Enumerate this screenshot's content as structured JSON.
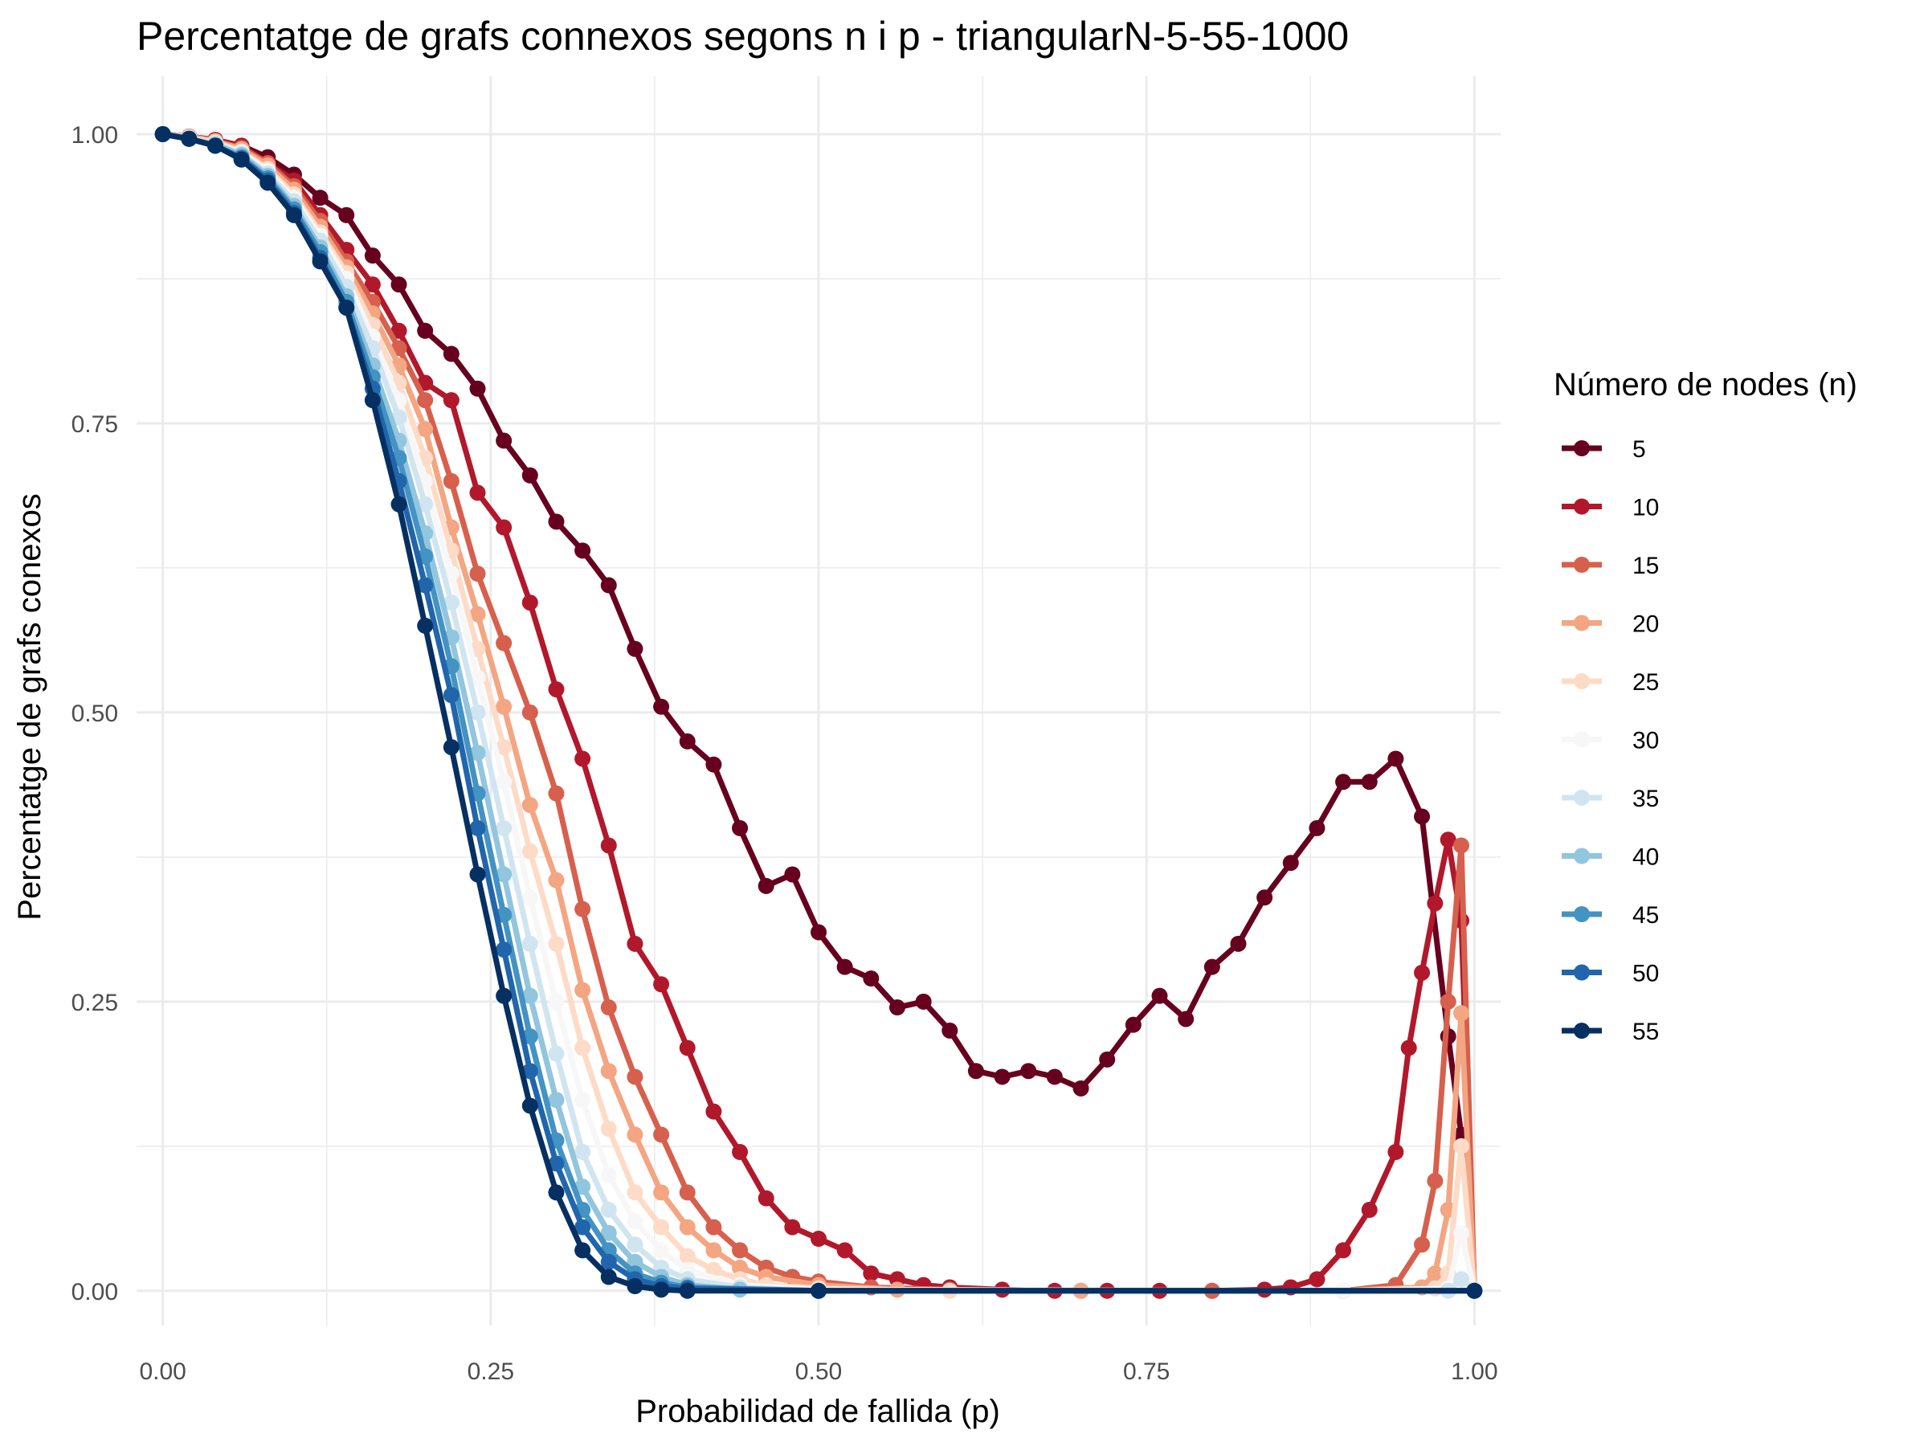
{
  "chart_data": {
    "type": "line",
    "title": "Percentatge de grafs connexos segons n i p - triangularN-5-55-1000",
    "xlabel": "Probabilidad de fallida (p)",
    "ylabel": "Percentatge de grafs conexos",
    "xlim": [
      -0.02,
      1.02
    ],
    "ylim": [
      -0.03,
      1.05
    ],
    "xticks": [
      0,
      0.25,
      0.5,
      0.75,
      1
    ],
    "xtick_labels": [
      "0.00",
      "0.25",
      "0.50",
      "0.75",
      "1.00"
    ],
    "yticks": [
      0,
      0.25,
      0.5,
      0.75,
      1
    ],
    "ytick_labels": [
      "0.00",
      "0.25",
      "0.50",
      "0.75",
      "1.00"
    ],
    "grid": true,
    "legend_title": "Número de nodes (n)",
    "legend_position": "right",
    "series": [
      {
        "name": "5",
        "color": "#67001f",
        "x": [
          0,
          0.02,
          0.04,
          0.06,
          0.08,
          0.1,
          0.12,
          0.14,
          0.16,
          0.18,
          0.2,
          0.22,
          0.24,
          0.26,
          0.28,
          0.3,
          0.32,
          0.34,
          0.36,
          0.38,
          0.4,
          0.42,
          0.44,
          0.46,
          0.48,
          0.5,
          0.52,
          0.54,
          0.56,
          0.58,
          0.6,
          0.62,
          0.64,
          0.66,
          0.68,
          0.7,
          0.72,
          0.74,
          0.76,
          0.78,
          0.8,
          0.82,
          0.84,
          0.86,
          0.88,
          0.9,
          0.92,
          0.94,
          0.96,
          0.98,
          0.99,
          1.0
        ],
        "y": [
          1.0,
          0.998,
          0.995,
          0.99,
          0.98,
          0.965,
          0.945,
          0.93,
          0.895,
          0.87,
          0.83,
          0.81,
          0.78,
          0.735,
          0.705,
          0.665,
          0.64,
          0.61,
          0.555,
          0.505,
          0.475,
          0.455,
          0.4,
          0.35,
          0.36,
          0.31,
          0.28,
          0.27,
          0.245,
          0.25,
          0.225,
          0.19,
          0.185,
          0.19,
          0.185,
          0.175,
          0.2,
          0.23,
          0.255,
          0.235,
          0.28,
          0.3,
          0.34,
          0.37,
          0.4,
          0.44,
          0.44,
          0.46,
          0.41,
          0.22,
          0.135,
          0.0
        ]
      },
      {
        "name": "10",
        "color": "#b2182b",
        "x": [
          0,
          0.02,
          0.04,
          0.06,
          0.08,
          0.1,
          0.12,
          0.14,
          0.16,
          0.18,
          0.2,
          0.22,
          0.24,
          0.26,
          0.28,
          0.3,
          0.32,
          0.34,
          0.36,
          0.38,
          0.4,
          0.42,
          0.44,
          0.46,
          0.48,
          0.5,
          0.52,
          0.54,
          0.56,
          0.58,
          0.6,
          0.64,
          0.68,
          0.72,
          0.76,
          0.8,
          0.84,
          0.86,
          0.88,
          0.9,
          0.92,
          0.94,
          0.95,
          0.96,
          0.97,
          0.98,
          0.99,
          1.0
        ],
        "y": [
          1.0,
          0.998,
          0.995,
          0.99,
          0.975,
          0.96,
          0.93,
          0.9,
          0.87,
          0.83,
          0.785,
          0.77,
          0.69,
          0.66,
          0.595,
          0.52,
          0.46,
          0.385,
          0.3,
          0.265,
          0.21,
          0.155,
          0.12,
          0.08,
          0.055,
          0.045,
          0.035,
          0.015,
          0.01,
          0.005,
          0.003,
          0.001,
          0,
          0,
          0,
          0,
          0.001,
          0.003,
          0.01,
          0.035,
          0.07,
          0.12,
          0.21,
          0.275,
          0.335,
          0.39,
          0.32,
          0.0
        ]
      },
      {
        "name": "15",
        "color": "#d6604d",
        "x": [
          0,
          0.02,
          0.04,
          0.06,
          0.08,
          0.1,
          0.12,
          0.14,
          0.16,
          0.18,
          0.2,
          0.22,
          0.24,
          0.26,
          0.28,
          0.3,
          0.32,
          0.34,
          0.36,
          0.38,
          0.4,
          0.42,
          0.44,
          0.46,
          0.48,
          0.5,
          0.54,
          0.6,
          0.7,
          0.8,
          0.9,
          0.94,
          0.96,
          0.97,
          0.98,
          0.99,
          1.0
        ],
        "y": [
          1.0,
          0.998,
          0.994,
          0.988,
          0.975,
          0.955,
          0.925,
          0.89,
          0.855,
          0.815,
          0.77,
          0.7,
          0.62,
          0.56,
          0.5,
          0.43,
          0.33,
          0.245,
          0.185,
          0.135,
          0.085,
          0.055,
          0.035,
          0.02,
          0.012,
          0.008,
          0.003,
          0.001,
          0,
          0,
          0,
          0.005,
          0.04,
          0.095,
          0.25,
          0.385,
          0.0
        ]
      },
      {
        "name": "20",
        "color": "#f4a582",
        "x": [
          0,
          0.02,
          0.04,
          0.06,
          0.08,
          0.1,
          0.12,
          0.14,
          0.16,
          0.18,
          0.2,
          0.22,
          0.24,
          0.26,
          0.28,
          0.3,
          0.32,
          0.34,
          0.36,
          0.38,
          0.4,
          0.42,
          0.44,
          0.46,
          0.5,
          0.56,
          0.7,
          0.9,
          0.96,
          0.97,
          0.98,
          0.99,
          1.0
        ],
        "y": [
          1.0,
          0.998,
          0.994,
          0.987,
          0.973,
          0.952,
          0.92,
          0.885,
          0.845,
          0.8,
          0.745,
          0.66,
          0.585,
          0.505,
          0.42,
          0.355,
          0.26,
          0.19,
          0.135,
          0.085,
          0.055,
          0.035,
          0.02,
          0.012,
          0.005,
          0.001,
          0,
          0,
          0.003,
          0.015,
          0.07,
          0.24,
          0.0
        ]
      },
      {
        "name": "25",
        "color": "#fddbc7",
        "x": [
          0,
          0.02,
          0.04,
          0.06,
          0.08,
          0.1,
          0.12,
          0.14,
          0.16,
          0.18,
          0.2,
          0.22,
          0.24,
          0.26,
          0.28,
          0.3,
          0.32,
          0.34,
          0.36,
          0.38,
          0.4,
          0.42,
          0.44,
          0.46,
          0.5,
          0.6,
          0.9,
          0.97,
          0.98,
          0.99,
          1.0
        ],
        "y": [
          1.0,
          0.997,
          0.993,
          0.985,
          0.97,
          0.948,
          0.915,
          0.88,
          0.835,
          0.785,
          0.72,
          0.64,
          0.555,
          0.47,
          0.38,
          0.3,
          0.21,
          0.14,
          0.085,
          0.055,
          0.03,
          0.018,
          0.01,
          0.005,
          0.002,
          0,
          0,
          0.002,
          0.015,
          0.125,
          0.0
        ]
      },
      {
        "name": "30",
        "color": "#f7f7f7",
        "x": [
          0,
          0.02,
          0.04,
          0.06,
          0.08,
          0.1,
          0.12,
          0.14,
          0.16,
          0.18,
          0.2,
          0.22,
          0.24,
          0.26,
          0.28,
          0.3,
          0.32,
          0.34,
          0.36,
          0.38,
          0.4,
          0.44,
          0.5,
          0.9,
          0.98,
          0.99,
          1.0
        ],
        "y": [
          1.0,
          0.997,
          0.992,
          0.984,
          0.968,
          0.945,
          0.912,
          0.875,
          0.825,
          0.77,
          0.7,
          0.62,
          0.53,
          0.44,
          0.34,
          0.25,
          0.165,
          0.1,
          0.06,
          0.035,
          0.018,
          0.005,
          0.001,
          0,
          0.002,
          0.05,
          0.0
        ]
      },
      {
        "name": "35",
        "color": "#d1e5f0",
        "x": [
          0,
          0.02,
          0.04,
          0.06,
          0.08,
          0.1,
          0.12,
          0.14,
          0.16,
          0.18,
          0.2,
          0.22,
          0.24,
          0.26,
          0.28,
          0.3,
          0.32,
          0.34,
          0.36,
          0.38,
          0.4,
          0.44,
          0.5,
          0.98,
          0.99,
          1.0
        ],
        "y": [
          1.0,
          0.997,
          0.992,
          0.983,
          0.966,
          0.942,
          0.908,
          0.868,
          0.815,
          0.755,
          0.68,
          0.595,
          0.5,
          0.4,
          0.3,
          0.205,
          0.12,
          0.07,
          0.04,
          0.02,
          0.01,
          0.003,
          0,
          0,
          0.01,
          0.0
        ]
      },
      {
        "name": "40",
        "color": "#92c5de",
        "x": [
          0,
          0.02,
          0.04,
          0.06,
          0.08,
          0.1,
          0.12,
          0.14,
          0.16,
          0.18,
          0.2,
          0.22,
          0.24,
          0.26,
          0.28,
          0.3,
          0.32,
          0.34,
          0.36,
          0.38,
          0.4,
          0.44,
          0.5,
          1.0
        ],
        "y": [
          1.0,
          0.996,
          0.991,
          0.982,
          0.964,
          0.938,
          0.902,
          0.86,
          0.8,
          0.735,
          0.655,
          0.565,
          0.465,
          0.36,
          0.255,
          0.165,
          0.09,
          0.05,
          0.025,
          0.012,
          0.005,
          0.001,
          0,
          0.0
        ]
      },
      {
        "name": "45",
        "color": "#4393c3",
        "x": [
          0,
          0.02,
          0.04,
          0.06,
          0.08,
          0.1,
          0.12,
          0.14,
          0.16,
          0.18,
          0.2,
          0.22,
          0.24,
          0.26,
          0.28,
          0.3,
          0.32,
          0.34,
          0.36,
          0.38,
          0.4,
          0.5,
          1.0
        ],
        "y": [
          1.0,
          0.996,
          0.99,
          0.98,
          0.962,
          0.935,
          0.898,
          0.855,
          0.79,
          0.72,
          0.635,
          0.54,
          0.43,
          0.325,
          0.22,
          0.13,
          0.07,
          0.035,
          0.015,
          0.007,
          0.003,
          0,
          0.0
        ]
      },
      {
        "name": "50",
        "color": "#2166ac",
        "x": [
          0,
          0.02,
          0.04,
          0.06,
          0.08,
          0.1,
          0.12,
          0.14,
          0.16,
          0.18,
          0.2,
          0.22,
          0.24,
          0.26,
          0.28,
          0.3,
          0.32,
          0.34,
          0.36,
          0.38,
          0.4,
          0.5,
          1.0
        ],
        "y": [
          1.0,
          0.996,
          0.99,
          0.979,
          0.96,
          0.932,
          0.893,
          0.85,
          0.78,
          0.7,
          0.61,
          0.515,
          0.4,
          0.295,
          0.19,
          0.11,
          0.055,
          0.025,
          0.01,
          0.004,
          0.002,
          0,
          0.0
        ]
      },
      {
        "name": "55",
        "color": "#053061",
        "x": [
          0,
          0.02,
          0.04,
          0.06,
          0.08,
          0.1,
          0.12,
          0.14,
          0.16,
          0.18,
          0.2,
          0.22,
          0.24,
          0.26,
          0.28,
          0.3,
          0.32,
          0.34,
          0.36,
          0.38,
          0.4,
          0.5,
          1.0
        ],
        "y": [
          1.0,
          0.996,
          0.99,
          0.978,
          0.958,
          0.93,
          0.89,
          0.85,
          0.77,
          0.68,
          0.575,
          0.47,
          0.36,
          0.255,
          0.16,
          0.085,
          0.035,
          0.012,
          0.004,
          0.001,
          0,
          0,
          0.0
        ]
      }
    ]
  }
}
